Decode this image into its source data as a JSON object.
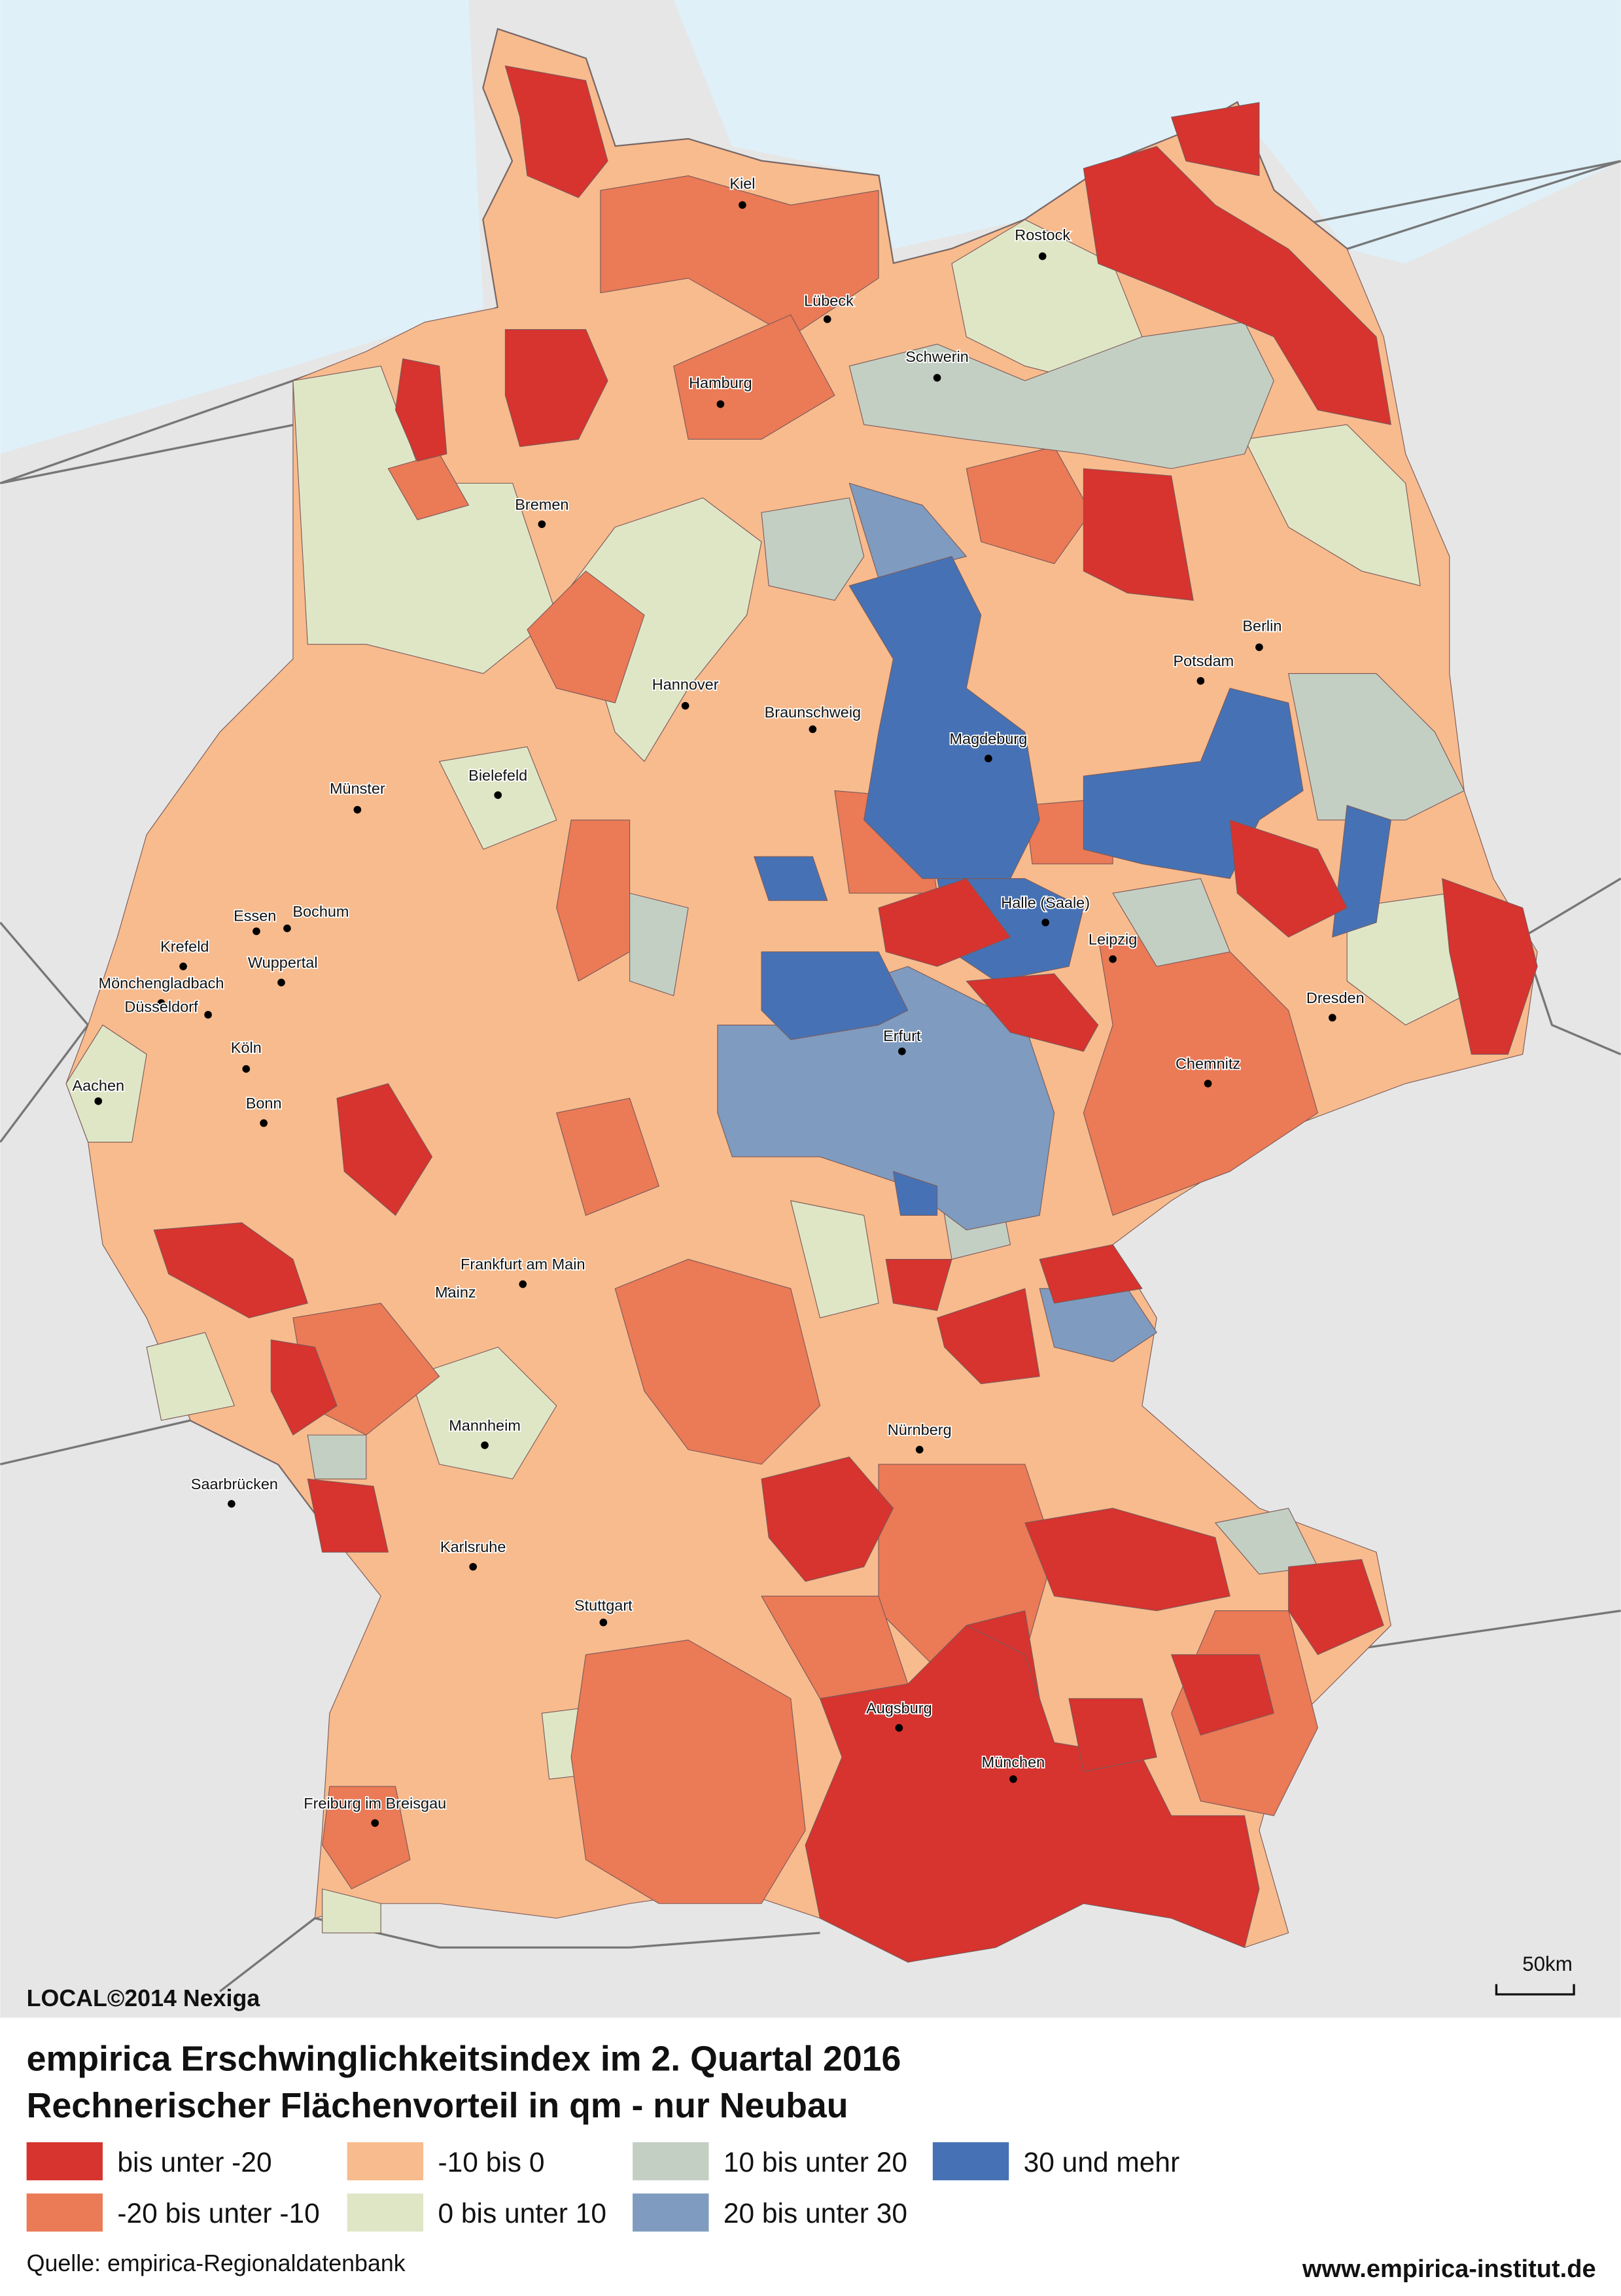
{
  "map": {
    "attribution": "LOCAL©2014 Nexiga",
    "scale_label": "50km",
    "cities": [
      "Kiel",
      "Rostock",
      "Lübeck",
      "Schwerin",
      "Hamburg",
      "Bremen",
      "Berlin",
      "Potsdam",
      "Hannover",
      "Braunschweig",
      "Magdeburg",
      "Bielefeld",
      "Münster",
      "Essen",
      "Bochum",
      "Krefeld",
      "Wuppertal",
      "Mönchengladbach",
      "Düsseldorf",
      "Halle (Saale)",
      "Leipzig",
      "Dresden",
      "Erfurt",
      "Köln",
      "Aachen",
      "Bonn",
      "Chemnitz",
      "Frankfurt am Main",
      "Mainz",
      "Mannheim",
      "Nürnberg",
      "Saarbrücken",
      "Karlsruhe",
      "Stuttgart",
      "Augsburg",
      "München",
      "Freiburg im Breisgau"
    ]
  },
  "title": [
    "empirica Erschwinglichkeitsindex im 2. Quartal 2016",
    "Rechnerischer Flächenvorteil in qm - nur Neubau"
  ],
  "legend": [
    {
      "label": "bis unter -20",
      "color": "#d7332f"
    },
    {
      "label": "-20 bis unter -10",
      "color": "#eb7a56"
    },
    {
      "label": "-10 bis 0",
      "color": "#f8bb8d"
    },
    {
      "label": "0 bis unter 10",
      "color": "#dfe6c6"
    },
    {
      "label": "10 bis unter 20",
      "color": "#c4cfc3"
    },
    {
      "label": "20 bis unter 30",
      "color": "#7f9bbf"
    },
    {
      "label": "30 und mehr",
      "color": "#4672b5"
    }
  ],
  "source": "Quelle: empirica-Regionaldatenbank",
  "website": "www.empirica-institut.de"
}
